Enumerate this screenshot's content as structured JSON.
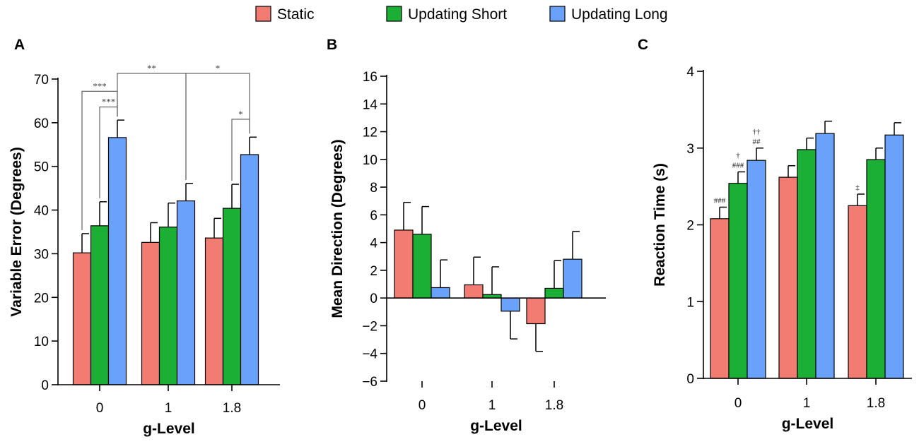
{
  "legend": [
    {
      "label": "Static",
      "color": "#f27b72"
    },
    {
      "label": "Updating Short",
      "color": "#1bb035"
    },
    {
      "label": "Updating Long",
      "color": "#6aa2fb"
    }
  ],
  "chart_data": [
    {
      "id": "A",
      "type": "bar",
      "panel_label": "A",
      "xlabel": "g-Level",
      "ylabel": "Variable Error (Degrees)",
      "categories": [
        "0",
        "1",
        "1.8"
      ],
      "ylim": [
        0,
        70
      ],
      "yticks": [
        0,
        10,
        20,
        30,
        40,
        50,
        60,
        70
      ],
      "series": [
        {
          "name": "Static",
          "values": [
            30.2,
            32.6,
            33.6
          ],
          "errors": [
            4.4,
            4.5,
            4.5
          ]
        },
        {
          "name": "Updating Short",
          "values": [
            36.4,
            36.1,
            40.4
          ],
          "errors": [
            5.5,
            5.5,
            5.5
          ]
        },
        {
          "name": "Updating Long",
          "values": [
            56.6,
            42.1,
            52.7
          ],
          "errors": [
            4.0,
            4.0,
            4.0
          ]
        }
      ],
      "significance": [
        {
          "label": "***",
          "from": "0|Static",
          "to": "0|Updating Long",
          "level": 67.2
        },
        {
          "label": "***",
          "from": "0|Updating Short",
          "to": "0|Updating Long",
          "level": 63.6
        },
        {
          "label": "**",
          "from": "0|Updating Long",
          "to": "1|Updating Long",
          "level": 71.3
        },
        {
          "label": "*",
          "from": "1|Updating Long",
          "to": "1.8|Updating Long",
          "level": 71.3
        },
        {
          "label": "*",
          "from": "1.8|Updating Short",
          "to": "1.8|Updating Long",
          "level": 60.8
        }
      ]
    },
    {
      "id": "B",
      "type": "bar",
      "panel_label": "B",
      "xlabel": "g-Level",
      "ylabel": "Mean Direction (Degrees)",
      "categories": [
        "0",
        "1",
        "1.8"
      ],
      "ylim": [
        -6,
        16
      ],
      "yticks": [
        -6,
        -4,
        -2,
        0,
        2,
        4,
        6,
        8,
        10,
        12,
        14,
        16
      ],
      "ytick_labels": [
        "−6",
        "−4",
        "−2",
        "0",
        "2",
        "4",
        "6",
        "8",
        "10",
        "12",
        "14",
        "16"
      ],
      "series": [
        {
          "name": "Static",
          "values": [
            4.9,
            0.95,
            -1.85
          ],
          "errors": [
            2.0,
            2.0,
            2.0
          ]
        },
        {
          "name": "Updating Short",
          "values": [
            4.6,
            0.25,
            0.7
          ],
          "errors": [
            2.0,
            2.0,
            2.0
          ]
        },
        {
          "name": "Updating Long",
          "values": [
            0.75,
            -0.95,
            2.8
          ],
          "errors": [
            2.0,
            2.0,
            2.0
          ]
        }
      ],
      "significance": []
    },
    {
      "id": "C",
      "type": "bar",
      "panel_label": "C",
      "xlabel": "g-Level",
      "ylabel": "Reaction Time (s)",
      "categories": [
        "0",
        "1",
        "1.8"
      ],
      "ylim": [
        0,
        4
      ],
      "yticks": [
        0,
        1,
        2,
        3,
        4
      ],
      "series": [
        {
          "name": "Static",
          "values": [
            2.08,
            2.62,
            2.25
          ],
          "errors": [
            0.15,
            0.15,
            0.15
          ]
        },
        {
          "name": "Updating Short",
          "values": [
            2.54,
            2.98,
            2.85
          ],
          "errors": [
            0.15,
            0.15,
            0.15
          ]
        },
        {
          "name": "Updating Long",
          "values": [
            2.84,
            3.19,
            3.17
          ],
          "errors": [
            0.16,
            0.16,
            0.16
          ]
        }
      ],
      "annotations": [
        {
          "target": "0|Static",
          "lines": [
            "###"
          ]
        },
        {
          "target": "0|Updating Short",
          "lines": [
            "†",
            "###"
          ]
        },
        {
          "target": "0|Updating Long",
          "lines": [
            "††",
            "##"
          ]
        },
        {
          "target": "1.8|Static",
          "lines": [
            "‡"
          ]
        }
      ]
    }
  ]
}
